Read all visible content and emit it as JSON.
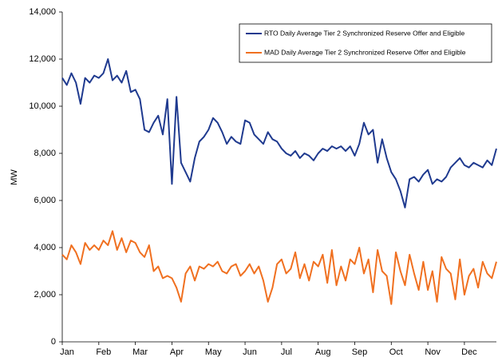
{
  "chart_data": {
    "type": "line",
    "ylabel": "MW",
    "categories": [
      "Jan",
      null,
      null,
      null,
      null,
      null,
      null,
      null,
      "Feb",
      null,
      null,
      null,
      null,
      null,
      null,
      null,
      "Mar",
      null,
      null,
      null,
      null,
      null,
      null,
      null,
      "Apr",
      null,
      null,
      null,
      null,
      null,
      null,
      null,
      "May",
      null,
      null,
      null,
      null,
      null,
      null,
      null,
      "Jun",
      null,
      null,
      null,
      null,
      null,
      null,
      null,
      "Jul",
      null,
      null,
      null,
      null,
      null,
      null,
      null,
      "Aug",
      null,
      null,
      null,
      null,
      null,
      null,
      null,
      "Sep",
      null,
      null,
      null,
      null,
      null,
      null,
      null,
      "Oct",
      null,
      null,
      null,
      null,
      null,
      null,
      null,
      "Nov",
      null,
      null,
      null,
      null,
      null,
      null,
      null,
      "Dec",
      null,
      null,
      null,
      null,
      null,
      null,
      null
    ],
    "series": [
      {
        "name": "RTO Daily Average Tier 2 Synchronized Reserve Offer and Eligible",
        "color": "#1f3a8f",
        "values": [
          11200,
          10900,
          11400,
          11000,
          10100,
          11200,
          11000,
          11300,
          11200,
          11400,
          12000,
          11100,
          11300,
          11000,
          11500,
          10600,
          10700,
          10300,
          9000,
          8900,
          9300,
          9600,
          8800,
          10300,
          6700,
          10400,
          7600,
          7200,
          6800,
          7800,
          8500,
          8700,
          9000,
          9500,
          9300,
          8900,
          8400,
          8700,
          8500,
          8400,
          9400,
          9300,
          8800,
          8600,
          8400,
          8900,
          8600,
          8500,
          8200,
          8000,
          7900,
          8100,
          7800,
          8000,
          7900,
          7700,
          8000,
          8200,
          8100,
          8300,
          8200,
          8300,
          8100,
          8300,
          7900,
          8400,
          9300,
          8800,
          9000,
          7600,
          8600,
          7800,
          7200,
          6900,
          6400,
          5700,
          6900,
          7000,
          6800,
          7100,
          7300,
          6700,
          6900,
          6800,
          7000,
          7400,
          7600,
          7800,
          7500,
          7400,
          7600,
          7500,
          7400,
          7700,
          7500,
          8200
        ]
      },
      {
        "name": "MAD Daily Average Tier 2 Synchronized Reserve Offer and Eligible",
        "color": "#f07020",
        "values": [
          3700,
          3500,
          4100,
          3800,
          3300,
          4200,
          3900,
          4100,
          3900,
          4300,
          4100,
          4700,
          3900,
          4400,
          3800,
          4300,
          4200,
          3800,
          3600,
          4100,
          3000,
          3200,
          2700,
          2800,
          2700,
          2300,
          1700,
          2900,
          3200,
          2600,
          3200,
          3100,
          3300,
          3200,
          3400,
          3000,
          2900,
          3200,
          3300,
          2800,
          3000,
          3300,
          2900,
          3200,
          2600,
          1700,
          2300,
          3300,
          3500,
          2900,
          3100,
          3800,
          2700,
          3300,
          2600,
          3400,
          3200,
          3700,
          2500,
          3900,
          2400,
          3200,
          2600,
          3500,
          3300,
          4000,
          2900,
          3500,
          2100,
          3900,
          3000,
          2800,
          1600,
          3800,
          3000,
          2400,
          3700,
          2900,
          2200,
          3400,
          2200,
          3000,
          1700,
          3600,
          3100,
          2900,
          1800,
          3500,
          2000,
          2800,
          3100,
          2300,
          3400,
          2900,
          2700,
          3400
        ]
      }
    ],
    "ylim": [
      0,
      14000
    ],
    "yticks": [
      0,
      {
        "value": 2000,
        "label": "2,000"
      },
      {
        "value": 4000,
        "label": "4,000"
      },
      {
        "value": 6000,
        "label": "6,000"
      },
      {
        "value": 8000,
        "label": "8,000"
      },
      {
        "value": 10000,
        "label": "10,000"
      },
      {
        "value": 12000,
        "label": "12,000"
      },
      {
        "value": 14000,
        "label": "14,000"
      }
    ],
    "legend": "upper right",
    "grid": false
  }
}
